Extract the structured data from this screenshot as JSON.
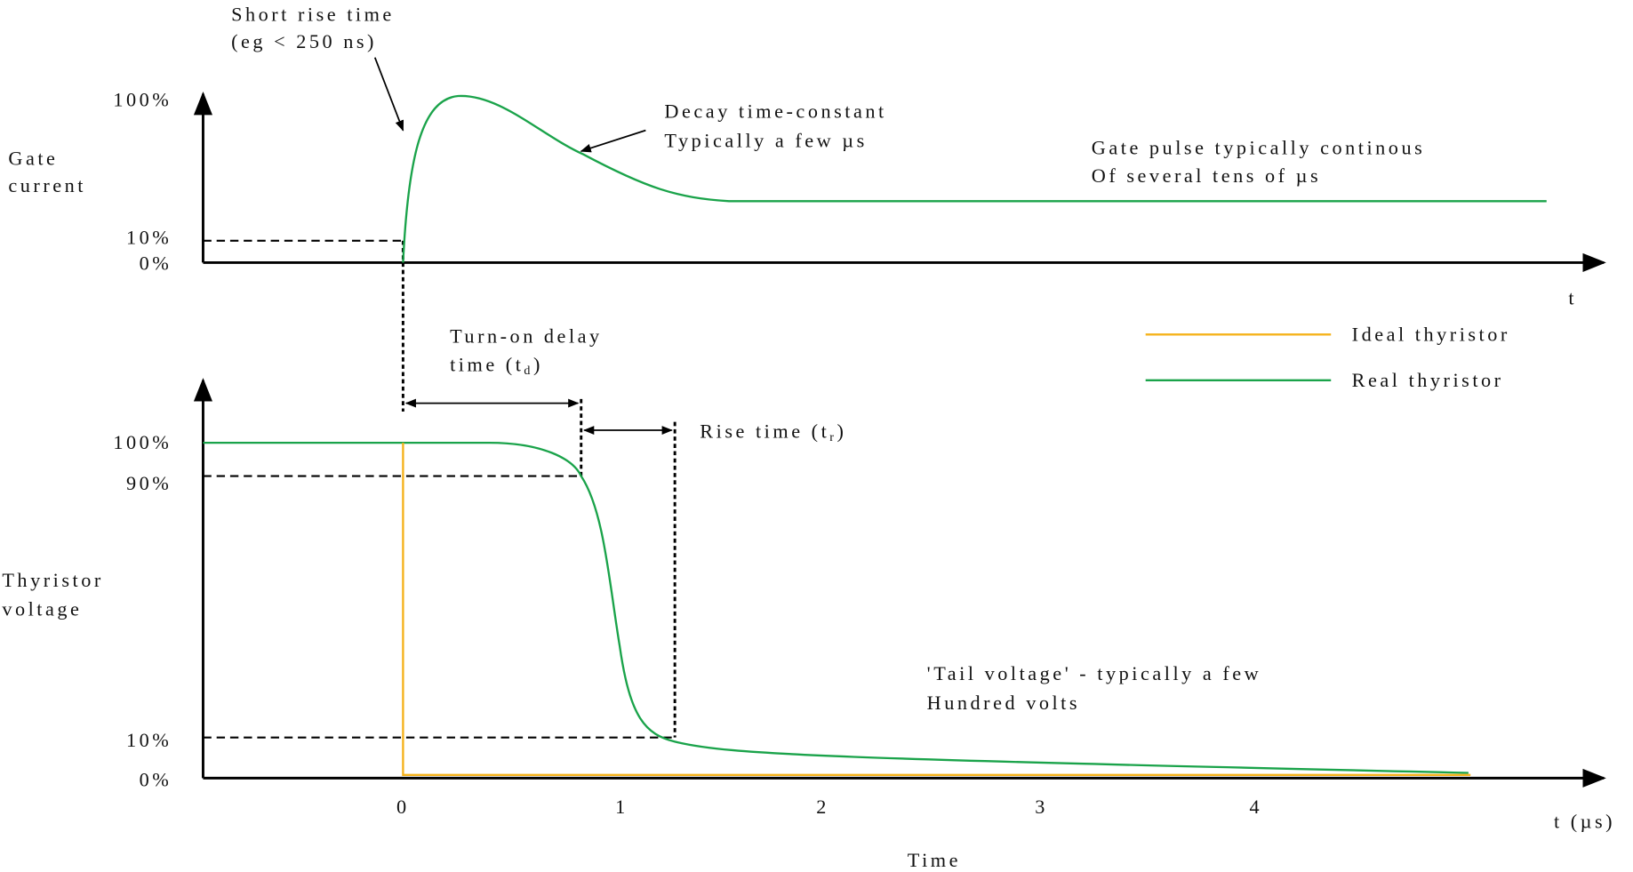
{
  "annotations": {
    "short_rise": [
      "Short rise time",
      "(eg < 250 ns)"
    ],
    "decay": [
      "Decay time-constant",
      "Typically a few µs"
    ],
    "gate_pulse": [
      "Gate pulse typically continous",
      "Of several tens of µs"
    ],
    "turn_on": {
      "line1": "Turn-on delay",
      "line2": "time (t",
      "sub": "d",
      "close": ")"
    },
    "rise_time": {
      "text": "Rise time (t",
      "sub": "r",
      "close": ")"
    },
    "tail": [
      "'Tail voltage' - typically a few",
      "Hundred volts"
    ]
  },
  "upper_axis": {
    "label": [
      "Gate",
      "current"
    ],
    "ticks": [
      "100%",
      "10%",
      "0%"
    ],
    "x_label": "t"
  },
  "lower_axis": {
    "label": [
      "Thyristor",
      "voltage"
    ],
    "ticks": [
      "100%",
      "90%",
      "10%",
      "0%"
    ],
    "x_ticks": [
      "0",
      "1",
      "2",
      "3",
      "4"
    ],
    "x_label": "t (µs)",
    "title": "Time"
  },
  "legend": [
    "Ideal thyristor",
    "Real thyristor"
  ]
}
